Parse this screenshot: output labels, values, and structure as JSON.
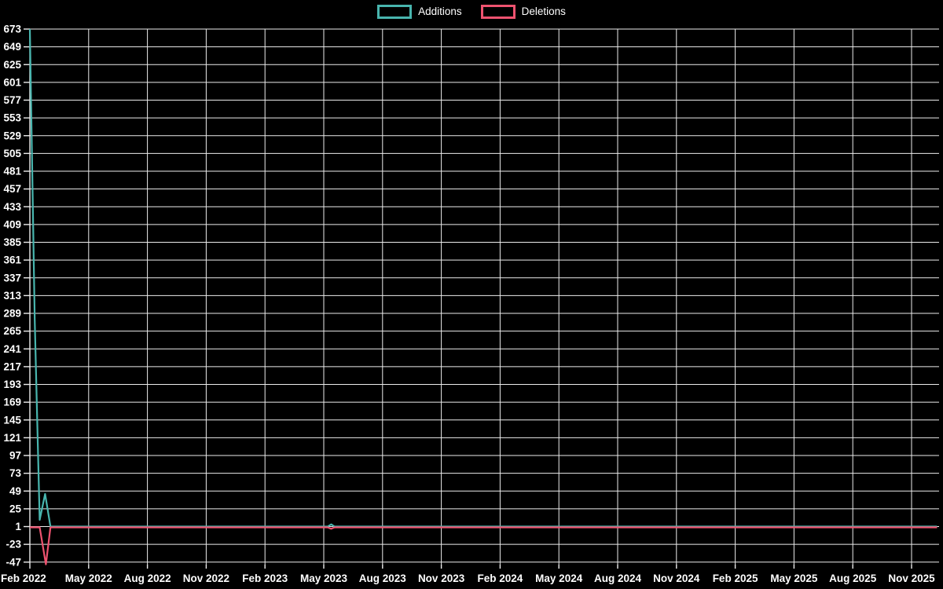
{
  "legend": {
    "items": [
      {
        "label": "Additions",
        "color": "#48b5ae"
      },
      {
        "label": "Deletions",
        "color": "#ef5370"
      }
    ]
  },
  "chart_data": {
    "type": "line",
    "title": "",
    "xlabel": "",
    "ylabel": "",
    "background_color": "#000000",
    "grid_color": "#ececec",
    "text_color": "#ffffff",
    "grid": true,
    "legend_position": "top-center",
    "x_tick_labels": [
      "Feb 2022",
      "May 2022",
      "Aug 2022",
      "Nov 2022",
      "Feb 2023",
      "May 2023",
      "Aug 2023",
      "Nov 2023",
      "Feb 2024",
      "May 2024",
      "Aug 2024",
      "Nov 2024",
      "Feb 2025",
      "May 2025",
      "Aug 2025",
      "Nov 2025"
    ],
    "x_tick_months": [
      0,
      3,
      6,
      9,
      12,
      15,
      18,
      21,
      24,
      27,
      30,
      33,
      36,
      39,
      42,
      45
    ],
    "y_ticks": [
      673,
      649,
      625,
      601,
      577,
      553,
      529,
      505,
      481,
      457,
      433,
      409,
      385,
      361,
      337,
      313,
      289,
      265,
      241,
      217,
      193,
      169,
      145,
      121,
      97,
      73,
      49,
      25,
      1,
      -23,
      -47
    ],
    "ylim": [
      -50,
      673
    ],
    "xlim_months": [
      0,
      46.3
    ],
    "series": [
      {
        "name": "Additions",
        "color": "#48b5ae",
        "points": [
          [
            0,
            673
          ],
          [
            0.25,
            280
          ],
          [
            0.5,
            10
          ],
          [
            0.78,
            45
          ],
          [
            1.05,
            1
          ],
          [
            15.2,
            1
          ],
          [
            15.38,
            4
          ],
          [
            15.55,
            1
          ],
          [
            46.3,
            1
          ]
        ]
      },
      {
        "name": "Deletions",
        "color": "#ef5370",
        "points": [
          [
            0,
            0
          ],
          [
            0.5,
            0
          ],
          [
            0.82,
            -50
          ],
          [
            1.05,
            0
          ],
          [
            15.2,
            0
          ],
          [
            15.38,
            -2
          ],
          [
            15.55,
            0
          ],
          [
            46.3,
            0
          ]
        ]
      }
    ]
  }
}
